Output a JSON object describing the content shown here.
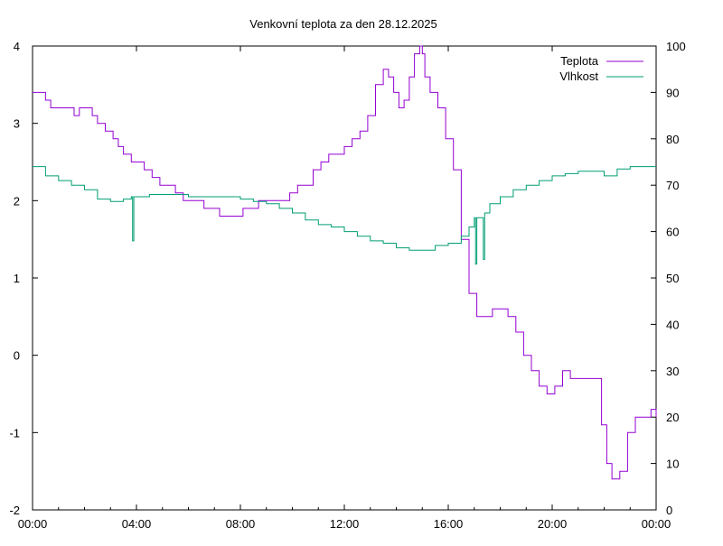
{
  "chart_data": {
    "type": "line",
    "title": "Venkovní teplota za den 28.12.2025",
    "x_ticks": [
      "00:00",
      "04:00",
      "08:00",
      "12:00",
      "16:00",
      "20:00",
      "00:00"
    ],
    "xlim": [
      0,
      24
    ],
    "y_left": {
      "ylim": [
        -2,
        4
      ],
      "ticks": [
        "-2",
        "-1",
        "0",
        "1",
        "2",
        "3",
        "4"
      ]
    },
    "y_right": {
      "ylim": [
        0,
        100
      ],
      "ticks": [
        "0",
        "10",
        "20",
        "30",
        "40",
        "50",
        "60",
        "70",
        "80",
        "90",
        "100"
      ]
    },
    "legend_position": "top-right",
    "series": [
      {
        "name": "Teplota",
        "axis": "left",
        "color": "#9400d3",
        "x": [
          0,
          0.3,
          0.5,
          0.7,
          1.0,
          1.3,
          1.6,
          1.8,
          2.0,
          2.3,
          2.5,
          2.8,
          3.1,
          3.3,
          3.5,
          3.8,
          4.0,
          4.3,
          4.6,
          4.9,
          5.2,
          5.5,
          5.8,
          6.0,
          6.3,
          6.6,
          6.9,
          7.2,
          7.5,
          7.8,
          8.1,
          8.4,
          8.7,
          9.0,
          9.3,
          9.6,
          9.9,
          10.2,
          10.5,
          10.8,
          11.1,
          11.4,
          11.7,
          12.0,
          12.3,
          12.6,
          12.9,
          13.2,
          13.5,
          13.7,
          13.9,
          14.1,
          14.3,
          14.5,
          14.7,
          14.9,
          15.0,
          15.1,
          15.3,
          15.6,
          15.9,
          16.2,
          16.5,
          16.8,
          17.1,
          17.4,
          17.7,
          18.0,
          18.3,
          18.6,
          18.9,
          19.2,
          19.5,
          19.8,
          20.1,
          20.4,
          20.7,
          21.0,
          21.3,
          21.6,
          21.9,
          22.1,
          22.3,
          22.6,
          22.9,
          23.2,
          23.5,
          23.8,
          24.0
        ],
        "values": [
          3.4,
          3.4,
          3.3,
          3.2,
          3.2,
          3.2,
          3.1,
          3.2,
          3.2,
          3.1,
          3.0,
          2.9,
          2.8,
          2.7,
          2.6,
          2.5,
          2.5,
          2.4,
          2.3,
          2.2,
          2.2,
          2.1,
          2.0,
          2.0,
          2.0,
          1.9,
          1.9,
          1.8,
          1.8,
          1.8,
          1.9,
          1.9,
          2.0,
          2.0,
          2.0,
          2.0,
          2.1,
          2.2,
          2.2,
          2.4,
          2.5,
          2.6,
          2.6,
          2.7,
          2.8,
          2.9,
          3.1,
          3.5,
          3.7,
          3.6,
          3.4,
          3.2,
          3.3,
          3.6,
          3.9,
          4.0,
          3.9,
          3.6,
          3.4,
          3.2,
          2.8,
          2.4,
          1.5,
          0.8,
          0.5,
          0.5,
          0.6,
          0.6,
          0.5,
          0.3,
          0.0,
          -0.2,
          -0.4,
          -0.5,
          -0.4,
          -0.2,
          -0.3,
          -0.3,
          -0.3,
          -0.3,
          -0.9,
          -1.4,
          -1.6,
          -1.5,
          -1.0,
          -0.8,
          -0.8,
          -0.7,
          -0.8
        ]
      },
      {
        "name": "Vlhkost",
        "axis": "right",
        "color": "#009e73",
        "x": [
          0,
          0.5,
          1.0,
          1.5,
          2.0,
          2.5,
          3.0,
          3.5,
          3.8,
          3.85,
          3.9,
          4.5,
          5.0,
          5.5,
          6.0,
          6.5,
          7.0,
          7.5,
          8.0,
          8.5,
          9.0,
          9.5,
          10.0,
          10.5,
          11.0,
          11.5,
          12.0,
          12.5,
          13.0,
          13.5,
          14.0,
          14.5,
          15.0,
          15.5,
          16.0,
          16.5,
          16.8,
          17.0,
          17.05,
          17.1,
          17.3,
          17.35,
          17.4,
          17.6,
          18.0,
          18.5,
          19.0,
          19.5,
          20.0,
          20.5,
          21.0,
          21.5,
          22.0,
          22.5,
          23.0,
          23.5,
          24.0
        ],
        "values": [
          74,
          72,
          71,
          70,
          69,
          67,
          66.5,
          67,
          67.5,
          58,
          67.5,
          68,
          68,
          68,
          67.5,
          67.5,
          67.5,
          67.5,
          67,
          66.5,
          66,
          65,
          64,
          62.5,
          61.5,
          61,
          60,
          59,
          58,
          57.5,
          56.5,
          56,
          56,
          57,
          57.5,
          59,
          61,
          63,
          53,
          63,
          63,
          54,
          64,
          66,
          67.5,
          69,
          70,
          71,
          72,
          72.5,
          73,
          73,
          72,
          73.5,
          74,
          74,
          74
        ]
      }
    ]
  }
}
